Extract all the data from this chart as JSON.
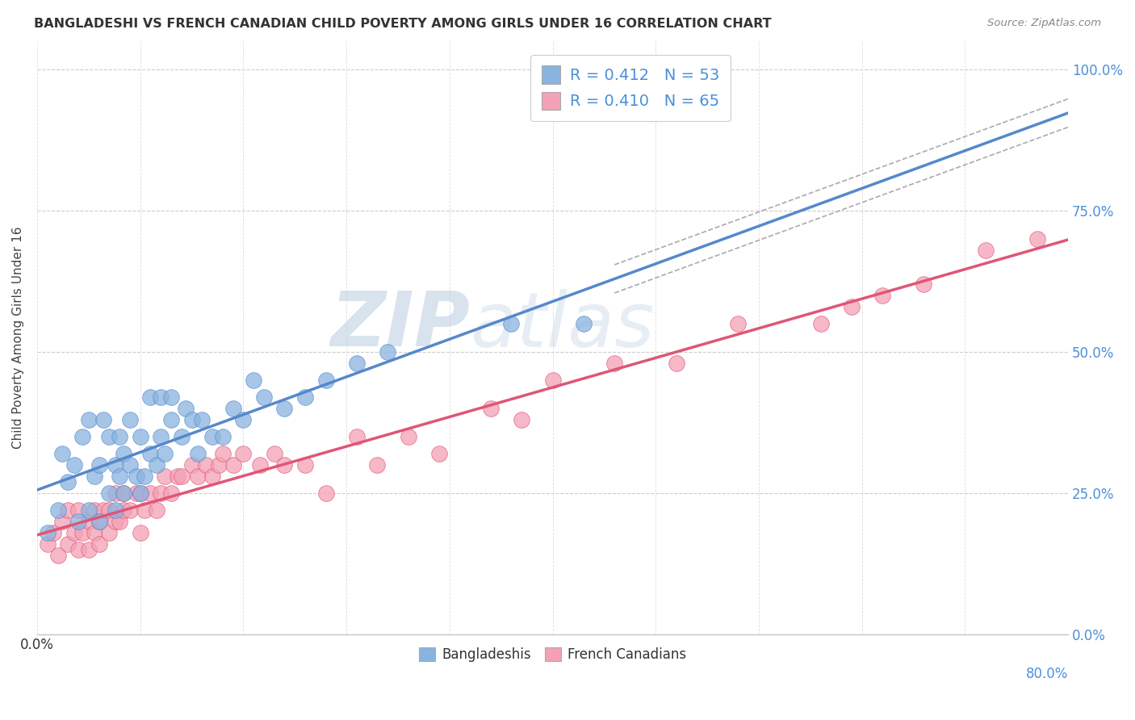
{
  "title": "BANGLADESHI VS FRENCH CANADIAN CHILD POVERTY AMONG GIRLS UNDER 16 CORRELATION CHART",
  "source": "Source: ZipAtlas.com",
  "ylabel": "Child Poverty Among Girls Under 16",
  "legend_label1": "Bangladeshis",
  "legend_label2": "French Canadians",
  "R1": "0.412",
  "N1": "53",
  "R2": "0.410",
  "N2": "65",
  "color1": "#8ab4e0",
  "color2": "#f4a0b5",
  "line1_color": "#5588cc",
  "line2_color": "#e05575",
  "dashed_line_color": "#aaaaaa",
  "watermark_color": "#c5d8ea",
  "background_color": "#ffffff",
  "scatter1_x": [
    0.005,
    0.01,
    0.012,
    0.015,
    0.018,
    0.02,
    0.022,
    0.025,
    0.025,
    0.028,
    0.03,
    0.03,
    0.032,
    0.035,
    0.035,
    0.038,
    0.038,
    0.04,
    0.04,
    0.042,
    0.042,
    0.045,
    0.045,
    0.048,
    0.05,
    0.05,
    0.052,
    0.055,
    0.055,
    0.058,
    0.06,
    0.06,
    0.062,
    0.065,
    0.065,
    0.07,
    0.072,
    0.075,
    0.078,
    0.08,
    0.085,
    0.09,
    0.095,
    0.1,
    0.105,
    0.11,
    0.12,
    0.13,
    0.14,
    0.155,
    0.17,
    0.23,
    0.265
  ],
  "scatter1_y": [
    0.18,
    0.22,
    0.32,
    0.27,
    0.3,
    0.2,
    0.35,
    0.22,
    0.38,
    0.28,
    0.2,
    0.3,
    0.38,
    0.25,
    0.35,
    0.22,
    0.3,
    0.28,
    0.35,
    0.25,
    0.32,
    0.3,
    0.38,
    0.28,
    0.25,
    0.35,
    0.28,
    0.32,
    0.42,
    0.3,
    0.35,
    0.42,
    0.32,
    0.38,
    0.42,
    0.35,
    0.4,
    0.38,
    0.32,
    0.38,
    0.35,
    0.35,
    0.4,
    0.38,
    0.45,
    0.42,
    0.4,
    0.42,
    0.45,
    0.48,
    0.5,
    0.55,
    0.55
  ],
  "scatter2_x": [
    0.005,
    0.008,
    0.01,
    0.012,
    0.015,
    0.015,
    0.018,
    0.02,
    0.02,
    0.022,
    0.025,
    0.025,
    0.028,
    0.028,
    0.03,
    0.03,
    0.032,
    0.035,
    0.035,
    0.038,
    0.038,
    0.04,
    0.042,
    0.042,
    0.045,
    0.048,
    0.05,
    0.05,
    0.052,
    0.055,
    0.058,
    0.06,
    0.062,
    0.065,
    0.068,
    0.07,
    0.075,
    0.078,
    0.082,
    0.085,
    0.088,
    0.09,
    0.095,
    0.1,
    0.108,
    0.115,
    0.12,
    0.13,
    0.14,
    0.155,
    0.165,
    0.18,
    0.195,
    0.22,
    0.235,
    0.25,
    0.28,
    0.31,
    0.34,
    0.38,
    0.395,
    0.41,
    0.43,
    0.46,
    0.485
  ],
  "scatter2_y": [
    0.16,
    0.18,
    0.14,
    0.2,
    0.16,
    0.22,
    0.18,
    0.15,
    0.22,
    0.18,
    0.15,
    0.2,
    0.18,
    0.22,
    0.16,
    0.2,
    0.22,
    0.18,
    0.22,
    0.2,
    0.25,
    0.2,
    0.22,
    0.25,
    0.22,
    0.25,
    0.18,
    0.25,
    0.22,
    0.25,
    0.22,
    0.25,
    0.28,
    0.25,
    0.28,
    0.28,
    0.3,
    0.28,
    0.3,
    0.28,
    0.3,
    0.32,
    0.3,
    0.32,
    0.3,
    0.32,
    0.3,
    0.3,
    0.25,
    0.35,
    0.3,
    0.35,
    0.32,
    0.4,
    0.38,
    0.45,
    0.48,
    0.48,
    0.55,
    0.55,
    0.58,
    0.6,
    0.62,
    0.68,
    0.7
  ],
  "xlim": [
    0.0,
    0.5
  ],
  "ylim": [
    0.0,
    1.05
  ],
  "xtick_vals": [
    0.0,
    0.05,
    0.1,
    0.15,
    0.2,
    0.25,
    0.3,
    0.35,
    0.4,
    0.45,
    0.5
  ],
  "ytick_vals": [
    0.0,
    0.25,
    0.5,
    0.75,
    1.0
  ],
  "ytick_labels": [
    "0.0%",
    "25.0%",
    "50.0%",
    "75.0%",
    "100.0%"
  ]
}
